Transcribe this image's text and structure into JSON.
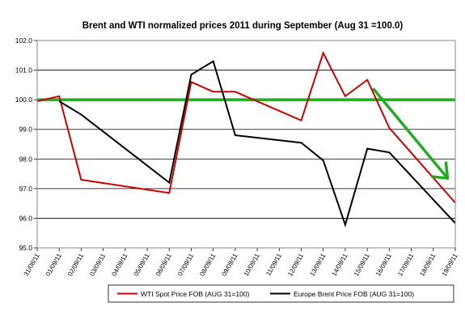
{
  "chart_data": {
    "type": "line",
    "title": "Brent and WTI normalized prices 2011 during   September (Aug 31 =100.0)",
    "xlabel": "",
    "ylabel": "",
    "ylim": [
      95.0,
      102.0
    ],
    "y_ticks": [
      "95.0",
      "96.0",
      "97.0",
      "98.0",
      "99.0",
      "100.0",
      "101.0",
      "102.0"
    ],
    "categories": [
      "31/08/11",
      "01/09/11",
      "02/09/11",
      "03/09/11",
      "04/09/11",
      "05/09/11",
      "06/09/11",
      "07/09/11",
      "08/09/11",
      "09/09/11",
      "10/09/11",
      "11/09/11",
      "12/09/11",
      "13/09/11",
      "14/09/11",
      "15/09/11",
      "16/09/11",
      "17/09/11",
      "18/09/11",
      "19/09/11"
    ],
    "series": [
      {
        "name": "WTI Spot Price FOB (AUG 31=100)",
        "color": "#cc0000",
        "points": [
          {
            "x": "31/08/11",
            "y": 99.95
          },
          {
            "x": "01/09/11",
            "y": 100.12
          },
          {
            "x": "02/09/11",
            "y": 97.3
          },
          {
            "x": "06/09/11",
            "y": 96.85
          },
          {
            "x": "07/09/11",
            "y": 100.6
          },
          {
            "x": "08/09/11",
            "y": 100.27
          },
          {
            "x": "09/09/11",
            "y": 100.27
          },
          {
            "x": "12/09/11",
            "y": 99.3
          },
          {
            "x": "13/09/11",
            "y": 101.58
          },
          {
            "x": "14/09/11",
            "y": 100.12
          },
          {
            "x": "15/09/11",
            "y": 100.67
          },
          {
            "x": "16/09/11",
            "y": 99.05
          },
          {
            "x": "19/09/11",
            "y": 96.52
          }
        ]
      },
      {
        "name": "Europe Brent Price FOB (AUG 31=100)",
        "color": "#000000",
        "points": [
          {
            "x": "01/09/11",
            "y": 99.95
          },
          {
            "x": "02/09/11",
            "y": 99.5
          },
          {
            "x": "06/09/11",
            "y": 97.2
          },
          {
            "x": "07/09/11",
            "y": 100.85
          },
          {
            "x": "08/09/11",
            "y": 101.3
          },
          {
            "x": "09/09/11",
            "y": 98.8
          },
          {
            "x": "12/09/11",
            "y": 98.55
          },
          {
            "x": "13/09/11",
            "y": 97.95
          },
          {
            "x": "14/09/11",
            "y": 95.78
          },
          {
            "x": "15/09/11",
            "y": 98.35
          },
          {
            "x": "16/09/11",
            "y": 98.22
          },
          {
            "x": "19/09/11",
            "y": 95.83
          }
        ]
      }
    ],
    "reference_line": {
      "y": 100.0,
      "color": "#22aa22"
    },
    "trend_arrow": {
      "from": {
        "x": "15/09/11",
        "y": 100.35
      },
      "to": {
        "x": "18/09/11",
        "y": 97.35
      },
      "color": "#22aa22"
    },
    "grid": true,
    "legend_position": "bottom"
  }
}
